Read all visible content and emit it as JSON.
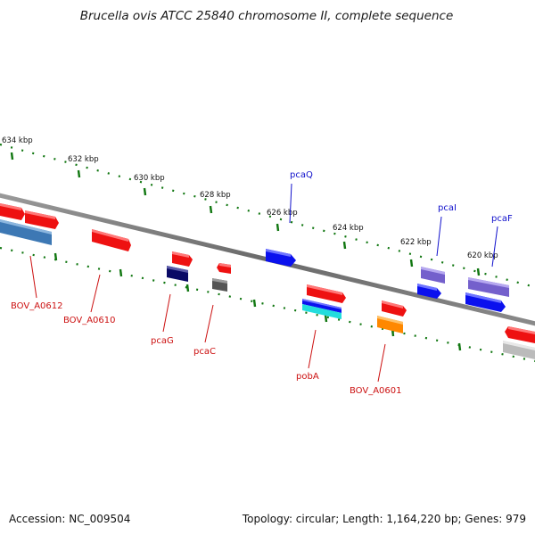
{
  "title": "Brucella ovis ATCC 25840 chromosome II, complete sequence",
  "footer": {
    "accession": "Accession: NC_009504",
    "summary": "Topology: circular; Length: 1,164,220 bp; Genes: 979"
  },
  "ruler_labels": [
    "634 kbp",
    "632 kbp",
    "630 kbp",
    "628 kbp",
    "626 kbp",
    "624 kbp",
    "622 kbp",
    "620 kbp"
  ],
  "gene_labels": {
    "pcaQ": "pcaQ",
    "pcaI": "pcaI",
    "pcaF": "pcaF",
    "BOV_A0612": "BOV_A0612",
    "BOV_A0610": "BOV_A0610",
    "pcaG": "pcaG",
    "pcaC": "pcaC",
    "pobA": "pobA",
    "BOV_A0601": "BOV_A0601"
  },
  "colors": {
    "red_gene": "#ee1111",
    "blue_gene": "#0b11ee",
    "navy_gene": "#0a0a66",
    "purple_gene": "#7460cc",
    "gray_gene": "#555555",
    "steel_gene": "#3d78b4",
    "orange_gene": "#ff8800",
    "cyan_gene": "#22dddd",
    "light_gene": "#bbbbbb",
    "tick_green": "#117711",
    "label_blue": "#1111cc",
    "label_red": "#cc1111",
    "backbone": "#777777"
  }
}
